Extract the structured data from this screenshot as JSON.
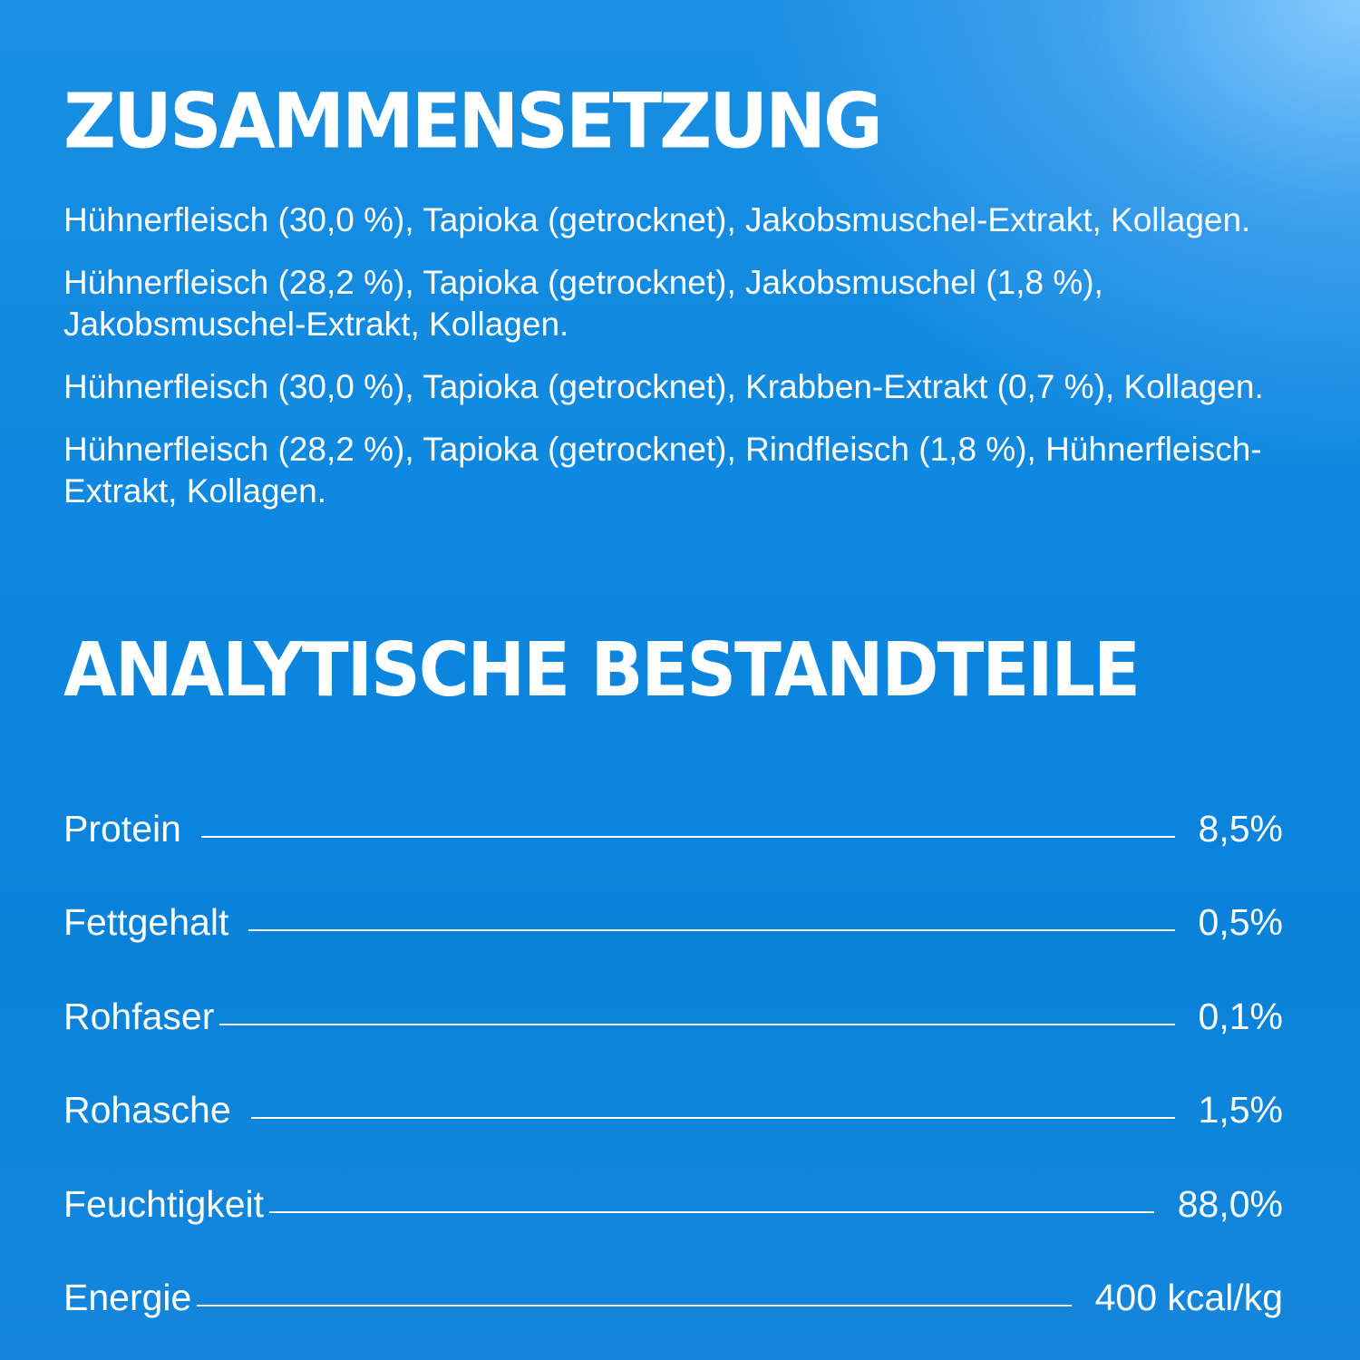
{
  "composition": {
    "heading": "Zusammensetzung",
    "items": [
      "Hühnerfleisch (30,0 %), Tapioka (getrocknet), Jakobsmuschel-Extrakt, Kollagen.",
      "Hühnerfleisch (28,2 %), Tapioka (getrocknet), Jakobsmuschel (1,8 %), Jakobsmuschel-Extrakt, Kollagen.",
      "Hühnerfleisch (30,0 %), Tapioka (getrocknet), Krabben-Extrakt (0,7 %), Kollagen.",
      "Hühnerfleisch (28,2 %), Tapioka (getrocknet), Rindfleisch (1,8 %), Hühnerfleisch-Extrakt, Kollagen."
    ]
  },
  "analytical": {
    "heading": "Analytische Bestandteile",
    "rows": [
      {
        "label": "Protein",
        "value": "8,5%"
      },
      {
        "label": "Fettgehalt",
        "value": "0,5%"
      },
      {
        "label": "Rohfaser",
        "value": "0,1%"
      },
      {
        "label": "Rohasche",
        "value": "1,5%"
      },
      {
        "label": "Feuchtigkeit",
        "value": "88,0%"
      },
      {
        "label": "Energie",
        "value": "400 kcal/kg"
      }
    ]
  },
  "colors": {
    "background_top": "#1a8fe2",
    "background_highlight": "#8ccdff",
    "text": "#ffffff"
  }
}
